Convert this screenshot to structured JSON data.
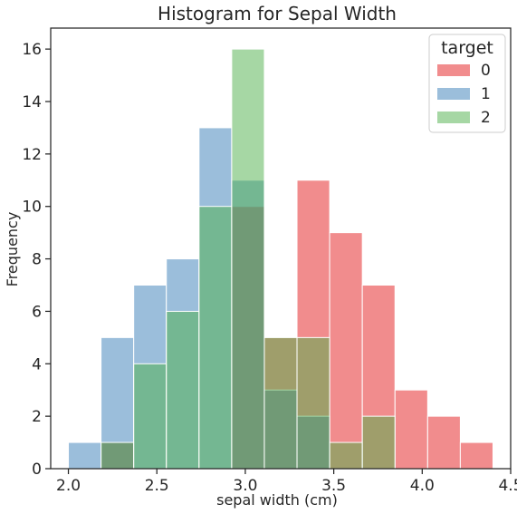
{
  "chart_data": {
    "type": "histogram",
    "title": "Histogram for Sepal Width",
    "xlabel": "sepal width (cm)",
    "ylabel": "Frequency",
    "xlim": [
      1.9,
      4.5
    ],
    "ylim": [
      0,
      16.8
    ],
    "xticks": [
      2.0,
      2.5,
      3.0,
      3.5,
      4.0,
      4.5
    ],
    "xtick_labels": [
      "2.0",
      "2.5",
      "3.0",
      "3.5",
      "4.0",
      "4.5"
    ],
    "yticks": [
      0,
      2,
      4,
      6,
      8,
      10,
      12,
      14,
      16
    ],
    "ytick_labels": [
      "0",
      "2",
      "4",
      "6",
      "8",
      "10",
      "12",
      "14",
      "16"
    ],
    "bin_edges": [
      2.0,
      2.1846,
      2.3692,
      2.5538,
      2.7385,
      2.9231,
      3.1077,
      3.2923,
      3.4769,
      3.6615,
      3.8462,
      4.0308,
      4.2154,
      4.4
    ],
    "grid": false,
    "legend": {
      "title": "target",
      "position": "top-right"
    },
    "series": [
      {
        "name": "0",
        "color": "#e41a1c",
        "values": [
          0,
          1,
          0,
          0,
          0,
          10,
          5,
          11,
          9,
          7,
          3,
          2,
          1
        ]
      },
      {
        "name": "1",
        "color": "#377eb8",
        "values": [
          1,
          5,
          7,
          8,
          13,
          11,
          3,
          2,
          0,
          0,
          0,
          0,
          0
        ]
      },
      {
        "name": "2",
        "color": "#4daf4a",
        "values": [
          0,
          1,
          4,
          6,
          10,
          16,
          5,
          5,
          1,
          2,
          0,
          0,
          0
        ]
      }
    ]
  }
}
